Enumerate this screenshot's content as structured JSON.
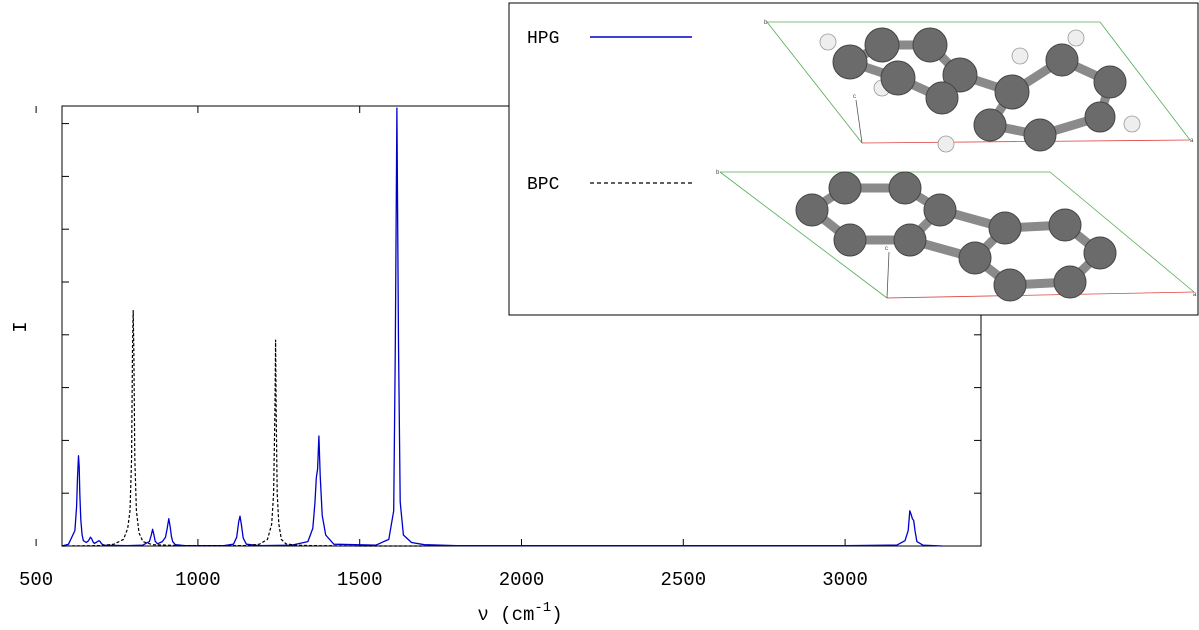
{
  "chart_data": {
    "type": "line",
    "xlabel": "ν (cm",
    "xlabel_sup": "-1",
    "xlabel_close": ")",
    "ylabel": "I",
    "xlim": [
      580,
      3420
    ],
    "ylim": [
      0,
      100
    ],
    "xticks": [
      500,
      1000,
      1500,
      2000,
      2500,
      3000
    ],
    "xticks_labels": [
      "500",
      "1000",
      "1500",
      "2000",
      "2500",
      "3000"
    ],
    "yticks": [
      12,
      24,
      36,
      48,
      60,
      72,
      84,
      96
    ],
    "grid": false,
    "legend_position": "inset top-right",
    "series": [
      {
        "name": "HPG",
        "color": "#0000cc",
        "style": "solid",
        "x": [
          580,
          600,
          620,
          625,
          628,
          631,
          633,
          635,
          638,
          642,
          646,
          655,
          662,
          668,
          672,
          676,
          680,
          688,
          694,
          698,
          702,
          710,
          780,
          830,
          850,
          856,
          860,
          864,
          868,
          875,
          890,
          900,
          905,
          910,
          914,
          918,
          922,
          930,
          960,
          1080,
          1110,
          1120,
          1126,
          1130,
          1134,
          1140,
          1150,
          1190,
          1290,
          1340,
          1355,
          1362,
          1366,
          1370,
          1374,
          1378,
          1384,
          1395,
          1420,
          1550,
          1590,
          1605,
          1610,
          1615,
          1620,
          1625,
          1635,
          1660,
          1700,
          1800,
          3000,
          3160,
          3185,
          3195,
          3200,
          3204,
          3208,
          3212,
          3216,
          3222,
          3240,
          3300
        ],
        "y": [
          0,
          0.4,
          3.5,
          9,
          15.5,
          20.5,
          18,
          12,
          6,
          2.5,
          1.2,
          0.8,
          1.2,
          2,
          1.6,
          0.9,
          0.6,
          0.9,
          1.2,
          1,
          0.5,
          0.2,
          0.1,
          0.2,
          1,
          2.5,
          3.8,
          2.6,
          1.1,
          0.5,
          1,
          2,
          4,
          6.2,
          4.5,
          2.2,
          1,
          0.3,
          0.1,
          0.1,
          0.4,
          2,
          5.5,
          6.8,
          5,
          1.8,
          0.4,
          0.1,
          0.2,
          1,
          4,
          10,
          15.5,
          17.5,
          25,
          16,
          7,
          2.5,
          0.4,
          0.2,
          1.5,
          8,
          45,
          99.5,
          46,
          10,
          2.5,
          0.8,
          0.3,
          0.1,
          0.1,
          0.2,
          1.2,
          3.5,
          8,
          7.2,
          6.2,
          5.8,
          3.5,
          1,
          0.2,
          0
        ]
      },
      {
        "name": "BPC",
        "color": "#000000",
        "style": "dashed",
        "x": [
          580,
          700,
          740,
          770,
          783,
          790,
          795,
          798,
          800,
          802,
          805,
          810,
          818,
          830,
          860,
          950,
          1150,
          1190,
          1215,
          1228,
          1234,
          1238,
          1240,
          1242,
          1245,
          1250,
          1258,
          1272,
          1300,
          1350,
          1500,
          1650,
          1700
        ],
        "y": [
          0,
          0.1,
          0.4,
          1.5,
          4,
          8,
          20,
          45,
          53.5,
          45,
          20,
          8,
          3,
          1,
          0.3,
          0.1,
          0.1,
          0.4,
          1.5,
          5,
          12,
          30,
          46.8,
          30,
          12,
          5,
          1.5,
          0.5,
          0.2,
          0.1,
          0,
          0,
          0
        ]
      }
    ],
    "inset": {
      "legend": [
        {
          "label": "HPG",
          "color": "#0000cc",
          "style": "solid"
        },
        {
          "label": "BPC",
          "color": "#000000",
          "style": "dashed"
        }
      ],
      "structure_labels": {
        "cell_corner_a": "a",
        "cell_corner_b": "b",
        "cell_corner_c": "c"
      }
    }
  }
}
